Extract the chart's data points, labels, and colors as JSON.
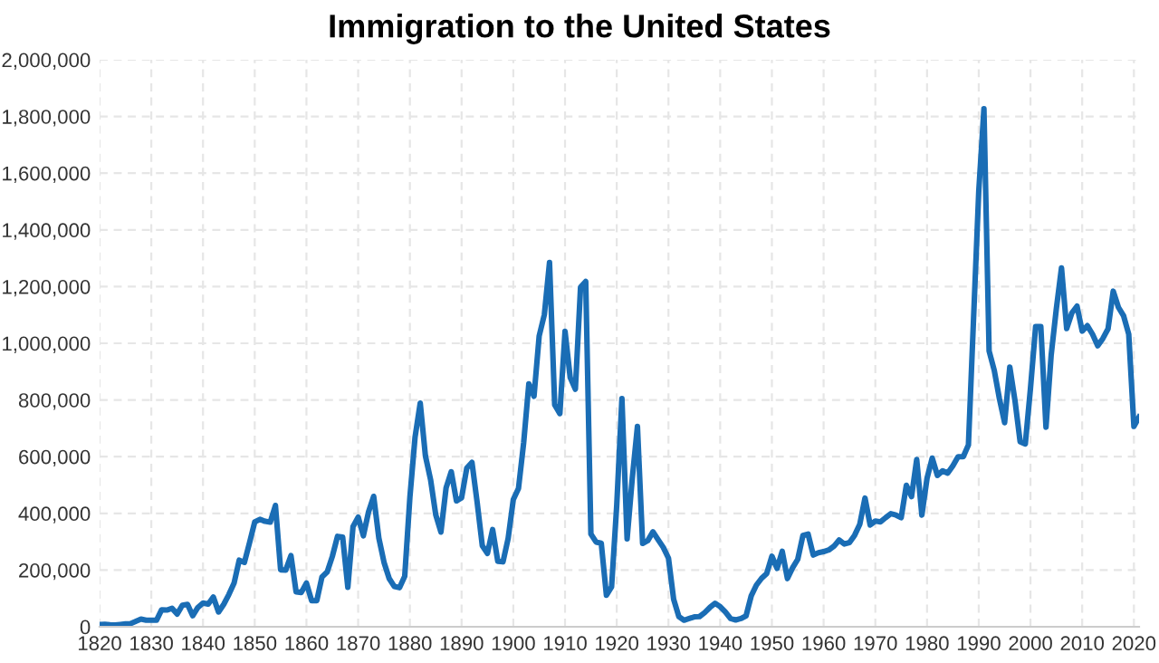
{
  "chart_data": {
    "type": "line",
    "title": "Immigration to the United States",
    "x": [
      1820,
      1821,
      1822,
      1823,
      1824,
      1825,
      1826,
      1827,
      1828,
      1829,
      1830,
      1831,
      1832,
      1833,
      1834,
      1835,
      1836,
      1837,
      1838,
      1839,
      1840,
      1841,
      1842,
      1843,
      1844,
      1845,
      1846,
      1847,
      1848,
      1849,
      1850,
      1851,
      1852,
      1853,
      1854,
      1855,
      1856,
      1857,
      1858,
      1859,
      1860,
      1861,
      1862,
      1863,
      1864,
      1865,
      1866,
      1867,
      1868,
      1869,
      1870,
      1871,
      1872,
      1873,
      1874,
      1875,
      1876,
      1877,
      1878,
      1879,
      1880,
      1881,
      1882,
      1883,
      1884,
      1885,
      1886,
      1887,
      1888,
      1889,
      1890,
      1891,
      1892,
      1893,
      1894,
      1895,
      1896,
      1897,
      1898,
      1899,
      1900,
      1901,
      1902,
      1903,
      1904,
      1905,
      1906,
      1907,
      1908,
      1909,
      1910,
      1911,
      1912,
      1913,
      1914,
      1915,
      1916,
      1917,
      1918,
      1919,
      1920,
      1921,
      1922,
      1923,
      1924,
      1925,
      1926,
      1927,
      1928,
      1929,
      1930,
      1931,
      1932,
      1933,
      1934,
      1935,
      1936,
      1937,
      1938,
      1939,
      1940,
      1941,
      1942,
      1943,
      1944,
      1945,
      1946,
      1947,
      1948,
      1949,
      1950,
      1951,
      1952,
      1953,
      1954,
      1955,
      1956,
      1957,
      1958,
      1959,
      1960,
      1961,
      1962,
      1963,
      1964,
      1965,
      1966,
      1967,
      1968,
      1969,
      1970,
      1971,
      1972,
      1973,
      1974,
      1975,
      1976,
      1977,
      1978,
      1979,
      1980,
      1981,
      1982,
      1983,
      1984,
      1985,
      1986,
      1987,
      1988,
      1989,
      1990,
      1991,
      1992,
      1993,
      1994,
      1995,
      1996,
      1997,
      1998,
      1999,
      2000,
      2001,
      2002,
      2003,
      2004,
      2005,
      2006,
      2007,
      2008,
      2009,
      2010,
      2011,
      2012,
      2013,
      2014,
      2015,
      2016,
      2017,
      2018,
      2019,
      2020,
      2021
    ],
    "series": [
      {
        "color": "#1a6db5",
        "values": [
          8000,
          9000,
          7000,
          6000,
          8000,
          10000,
          11000,
          19000,
          27000,
          23000,
          23000,
          23000,
          60000,
          59000,
          65000,
          45000,
          76000,
          79000,
          39000,
          68000,
          84000,
          80000,
          105000,
          52000,
          79000,
          114000,
          154000,
          235000,
          227000,
          297000,
          370000,
          379000,
          372000,
          369000,
          428000,
          201000,
          200000,
          251000,
          123000,
          121000,
          154000,
          92000,
          92000,
          176000,
          193000,
          248000,
          319000,
          316000,
          139000,
          353000,
          387000,
          321000,
          405000,
          460000,
          313000,
          227000,
          170000,
          142000,
          138000,
          178000,
          457000,
          669000,
          789000,
          603000,
          519000,
          395000,
          334000,
          490000,
          547000,
          444000,
          455000,
          560000,
          580000,
          440000,
          286000,
          259000,
          343000,
          231000,
          229000,
          312000,
          449000,
          488000,
          649000,
          857000,
          813000,
          1026000,
          1101000,
          1285000,
          783000,
          752000,
          1042000,
          879000,
          838000,
          1198000,
          1218000,
          327000,
          299000,
          295000,
          111000,
          141000,
          430000,
          805000,
          310000,
          523000,
          707000,
          294000,
          304000,
          335000,
          307000,
          280000,
          242000,
          97000,
          36000,
          23000,
          29000,
          35000,
          36000,
          50000,
          68000,
          83000,
          71000,
          52000,
          29000,
          24000,
          29000,
          38000,
          109000,
          147000,
          171000,
          188000,
          249000,
          206000,
          266000,
          170000,
          208000,
          238000,
          322000,
          327000,
          253000,
          261000,
          265000,
          271000,
          284000,
          306000,
          292000,
          297000,
          323000,
          362000,
          454000,
          359000,
          373000,
          370000,
          385000,
          399000,
          394000,
          385000,
          499000,
          459000,
          590000,
          394000,
          524000,
          595000,
          534000,
          550000,
          542000,
          568000,
          600000,
          600000,
          641000,
          1090000,
          1536000,
          1827000,
          973000,
          904000,
          804000,
          720000,
          916000,
          798000,
          653000,
          645000,
          841000,
          1059000,
          1059000,
          704000,
          958000,
          1122000,
          1266000,
          1052000,
          1107000,
          1131000,
          1043000,
          1062000,
          1032000,
          991000,
          1017000,
          1051000,
          1184000,
          1127000,
          1097000,
          1032000,
          707000,
          740000
        ]
      }
    ],
    "xlim": [
      1820,
      2021
    ],
    "xticks": [
      1820,
      1830,
      1840,
      1850,
      1860,
      1870,
      1880,
      1890,
      1900,
      1910,
      1920,
      1930,
      1940,
      1950,
      1960,
      1970,
      1980,
      1990,
      2000,
      2010,
      2020
    ],
    "ylim": [
      0,
      2000000
    ],
    "yticks": [
      {
        "value": 0,
        "label": "0"
      },
      {
        "value": 200000,
        "label": "200,000"
      },
      {
        "value": 400000,
        "label": "400,000"
      },
      {
        "value": 600000,
        "label": "600,000"
      },
      {
        "value": 800000,
        "label": "800,000"
      },
      {
        "value": 1000000,
        "label": "1,000,000"
      },
      {
        "value": 1200000,
        "label": "1,200,000"
      },
      {
        "value": 1400000,
        "label": "1,400,000"
      },
      {
        "value": 1600000,
        "label": "1,600,000"
      },
      {
        "value": 1800000,
        "label": "1,800,000"
      },
      {
        "value": 2000000,
        "label": "2,000,000"
      }
    ],
    "grid": true,
    "line_style": "solid",
    "marker": "none"
  }
}
